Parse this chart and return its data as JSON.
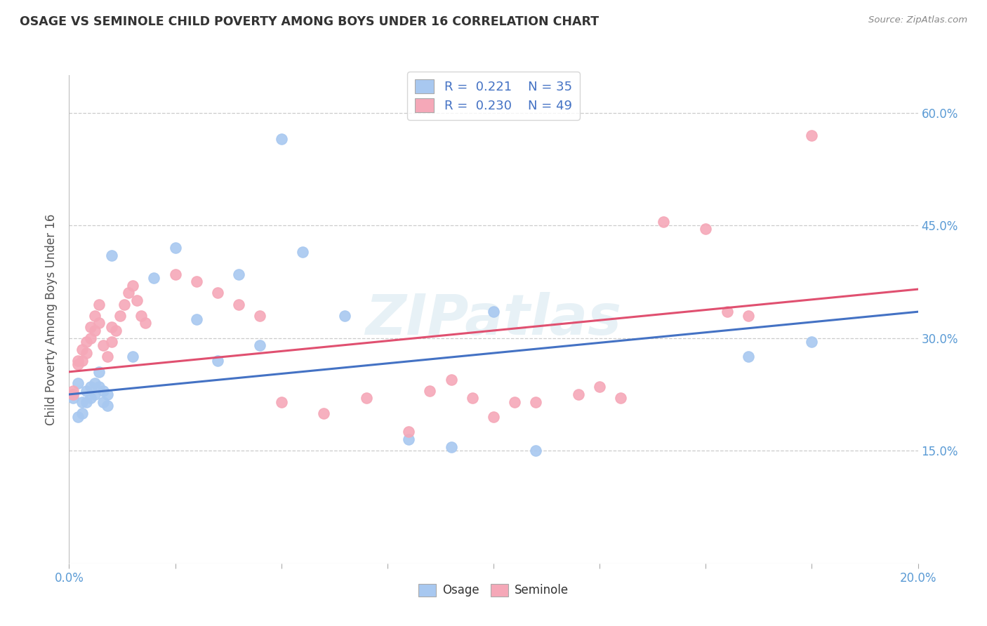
{
  "title": "OSAGE VS SEMINOLE CHILD POVERTY AMONG BOYS UNDER 16 CORRELATION CHART",
  "source": "Source: ZipAtlas.com",
  "ylabel": "Child Poverty Among Boys Under 16",
  "xlim": [
    0.0,
    0.2
  ],
  "ylim": [
    0.0,
    0.65
  ],
  "osage_R": 0.221,
  "osage_N": 35,
  "seminole_R": 0.23,
  "seminole_N": 49,
  "osage_color": "#A8C8F0",
  "seminole_color": "#F5A8B8",
  "osage_line_color": "#4472C4",
  "seminole_line_color": "#E05070",
  "background_color": "#FFFFFF",
  "grid_color": "#CCCCCC",
  "watermark": "ZIPatlas",
  "tick_color": "#5B9BD5",
  "osage_x": [
    0.001,
    0.001,
    0.002,
    0.002,
    0.003,
    0.003,
    0.004,
    0.004,
    0.005,
    0.005,
    0.006,
    0.006,
    0.007,
    0.007,
    0.008,
    0.008,
    0.009,
    0.009,
    0.01,
    0.015,
    0.02,
    0.025,
    0.03,
    0.035,
    0.04,
    0.045,
    0.05,
    0.055,
    0.065,
    0.08,
    0.09,
    0.1,
    0.11,
    0.16,
    0.175
  ],
  "osage_y": [
    0.22,
    0.225,
    0.24,
    0.195,
    0.215,
    0.2,
    0.23,
    0.215,
    0.235,
    0.22,
    0.24,
    0.225,
    0.255,
    0.235,
    0.23,
    0.215,
    0.225,
    0.21,
    0.41,
    0.275,
    0.38,
    0.42,
    0.325,
    0.27,
    0.385,
    0.29,
    0.565,
    0.415,
    0.33,
    0.165,
    0.155,
    0.335,
    0.15,
    0.275,
    0.295
  ],
  "seminole_x": [
    0.001,
    0.001,
    0.002,
    0.002,
    0.003,
    0.003,
    0.004,
    0.004,
    0.005,
    0.005,
    0.006,
    0.006,
    0.007,
    0.007,
    0.008,
    0.009,
    0.01,
    0.01,
    0.011,
    0.012,
    0.013,
    0.014,
    0.015,
    0.016,
    0.017,
    0.018,
    0.025,
    0.03,
    0.035,
    0.04,
    0.045,
    0.05,
    0.06,
    0.07,
    0.08,
    0.085,
    0.09,
    0.095,
    0.1,
    0.105,
    0.11,
    0.12,
    0.125,
    0.13,
    0.14,
    0.15,
    0.155,
    0.16,
    0.175
  ],
  "seminole_y": [
    0.23,
    0.225,
    0.27,
    0.265,
    0.285,
    0.27,
    0.295,
    0.28,
    0.315,
    0.3,
    0.33,
    0.31,
    0.345,
    0.32,
    0.29,
    0.275,
    0.315,
    0.295,
    0.31,
    0.33,
    0.345,
    0.36,
    0.37,
    0.35,
    0.33,
    0.32,
    0.385,
    0.375,
    0.36,
    0.345,
    0.33,
    0.215,
    0.2,
    0.22,
    0.175,
    0.23,
    0.245,
    0.22,
    0.195,
    0.215,
    0.215,
    0.225,
    0.235,
    0.22,
    0.455,
    0.445,
    0.335,
    0.33,
    0.57
  ]
}
